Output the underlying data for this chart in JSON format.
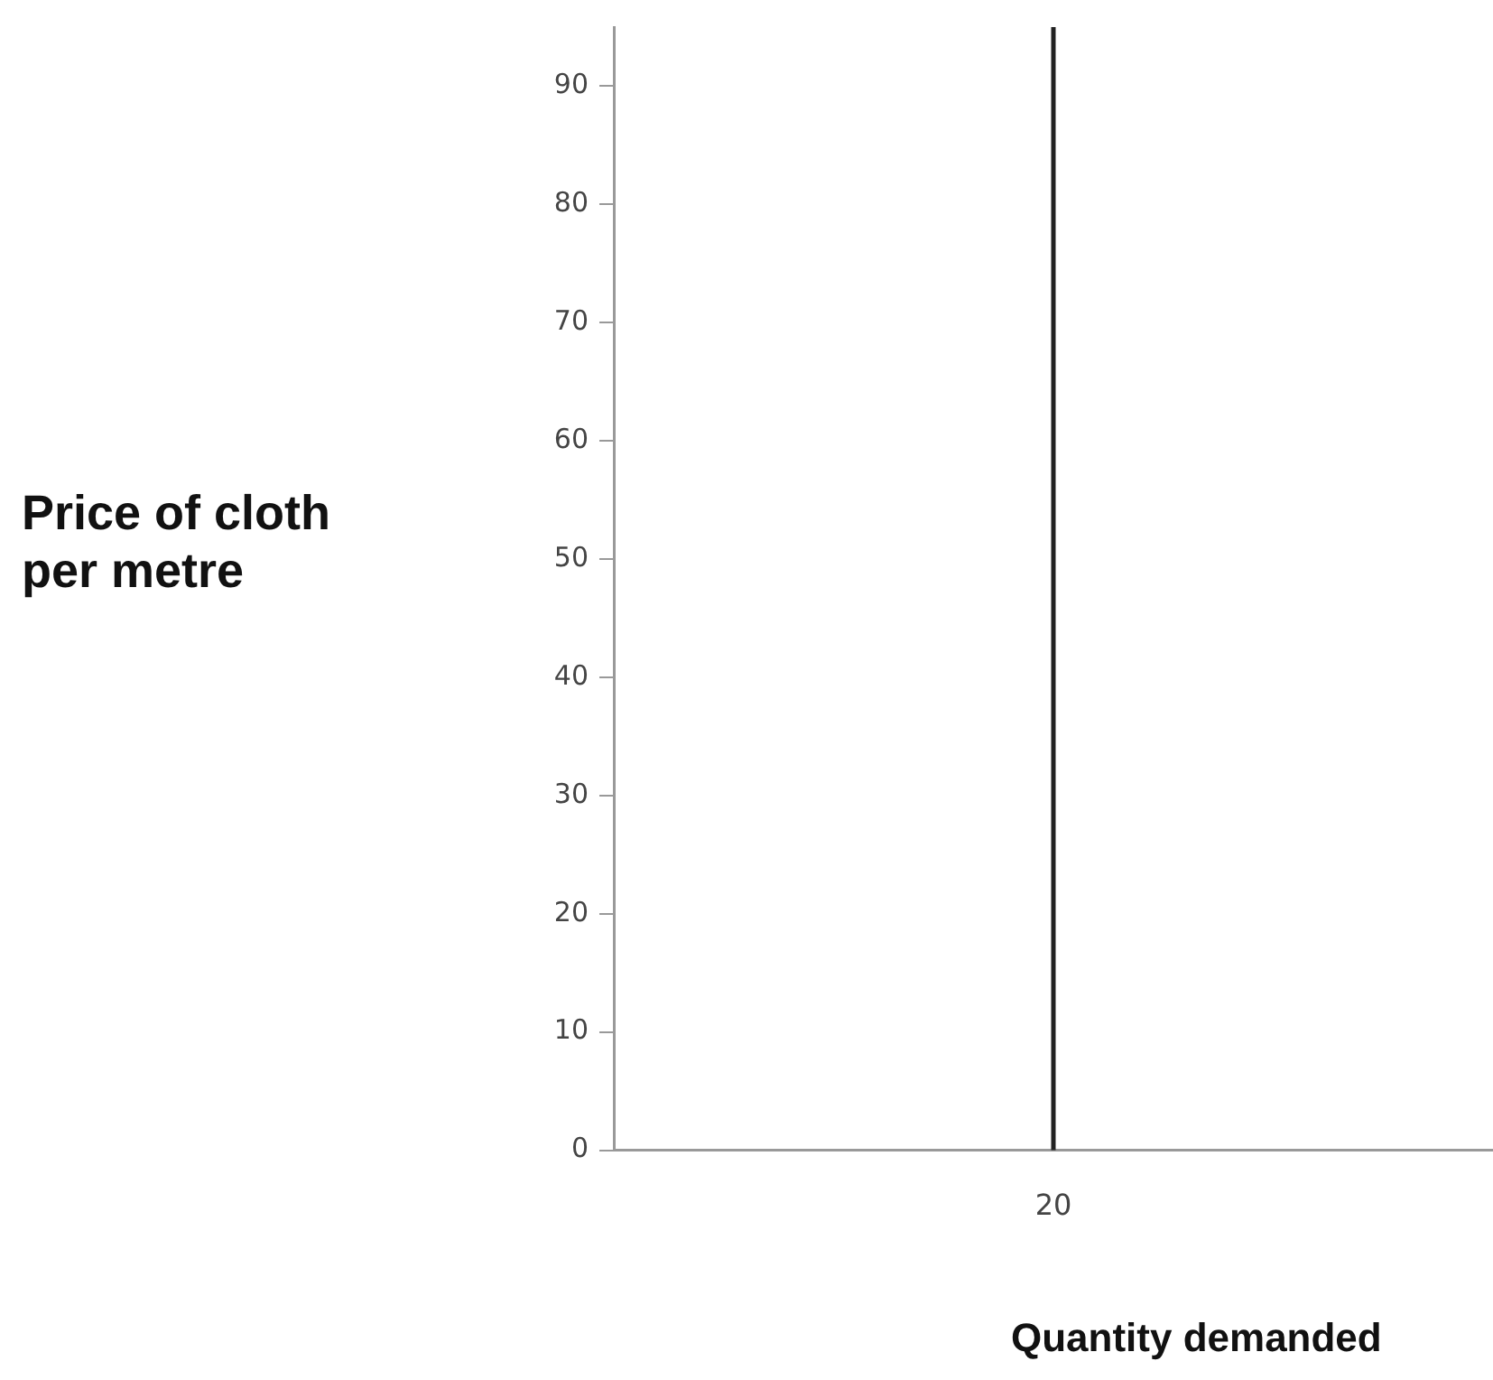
{
  "chart_data": {
    "type": "line",
    "xlabel": "Quantity demanded",
    "ylabel": "Price of cloth per metre",
    "categories": [
      "20"
    ],
    "values": [
      null
    ],
    "ref_lines": [
      {
        "axis": "x",
        "value": "20",
        "color": "#222222",
        "line_style": "solid"
      }
    ],
    "ylim": [
      0,
      95
    ],
    "yticks": [
      0,
      10,
      20,
      30,
      40,
      50,
      60,
      70,
      80,
      90
    ],
    "grid": false,
    "legend": false
  }
}
